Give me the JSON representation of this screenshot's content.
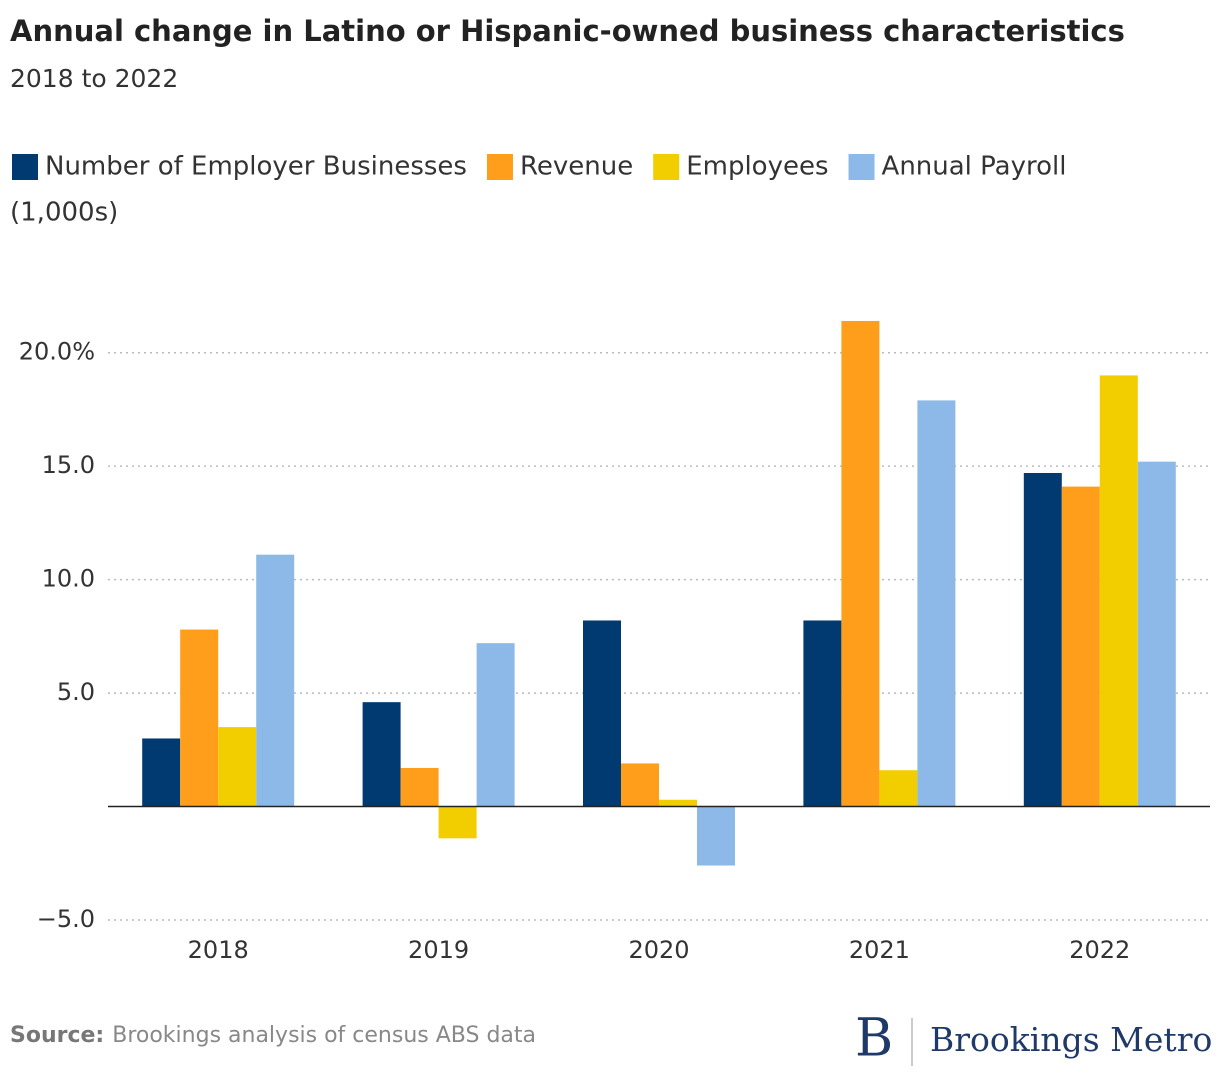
{
  "chart_data": {
    "type": "bar",
    "title": "Annual change in Latino or Hispanic-owned business characteristics",
    "subtitle": "2018 to 2022",
    "legend_note": "(1,000s)",
    "categories": [
      "2018",
      "2019",
      "2020",
      "2021",
      "2022"
    ],
    "series": [
      {
        "name": "Number of Employer Businesses",
        "color": "#003a70",
        "values": [
          3.0,
          4.6,
          8.2,
          8.2,
          14.7
        ]
      },
      {
        "name": "Revenue",
        "color": "#ff9e1b",
        "values": [
          7.8,
          1.7,
          1.9,
          21.4,
          14.1
        ]
      },
      {
        "name": "Employees",
        "color": "#f2cd00",
        "values": [
          3.5,
          -1.4,
          0.3,
          1.6,
          19.0
        ]
      },
      {
        "name": "Annual Payroll",
        "color": "#8db9e8",
        "values": [
          11.1,
          7.2,
          -2.6,
          17.9,
          15.2
        ]
      }
    ],
    "ylim": [
      -5,
      22.5
    ],
    "yticks": [
      {
        "value": -5,
        "label": "−5.0"
      },
      {
        "value": 5,
        "label": "5.0"
      },
      {
        "value": 10,
        "label": "10.0"
      },
      {
        "value": 15,
        "label": "15.0"
      },
      {
        "value": 20,
        "label": "20.0%"
      }
    ],
    "grid": true,
    "source_label": "Source:",
    "source": "Brookings analysis of census ABS data",
    "logo_mark": "B",
    "logo_text": "Brookings Metro"
  }
}
